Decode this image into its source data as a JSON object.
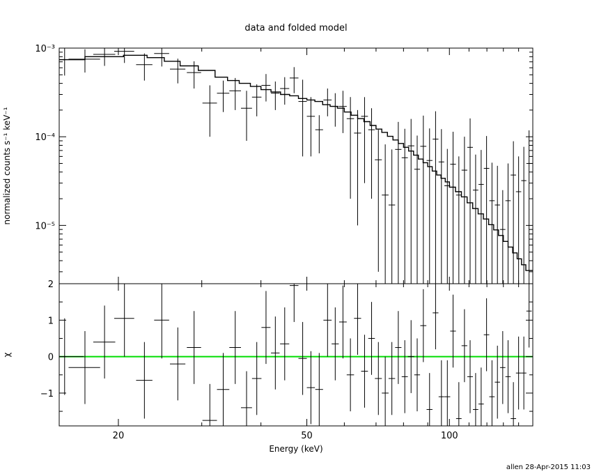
{
  "chart_data": [
    {
      "type": "scatter",
      "title": "data and folded model",
      "xlabel": "Energy (keV)",
      "ylabel": "normalized counts s⁻¹ keV⁻¹",
      "xscale": "log",
      "yscale": "log",
      "xlim": [
        15,
        150
      ],
      "ylim": [
        2.2e-06,
        0.001
      ],
      "x_ticks": [
        20,
        50,
        100
      ],
      "x_tick_labels": [
        "",
        "",
        ""
      ],
      "y_ticks": [
        0.001,
        0.0001,
        1e-05
      ],
      "y_tick_labels": [
        "10⁻³",
        "10⁻⁴",
        "10⁻⁵"
      ],
      "series": [
        {
          "role": "data",
          "x": [
            15.4,
            17.0,
            18.7,
            20.6,
            22.7,
            24.7,
            26.7,
            28.9,
            31.2,
            33.3,
            35.3,
            37.3,
            39.2,
            41.0,
            42.9,
            44.9,
            47.0,
            49.0,
            51.0,
            53.1,
            55.3,
            57.4,
            59.6,
            61.8,
            64.0,
            66.2,
            68.5,
            70.8,
            73.2,
            75.6,
            78.0,
            80.5,
            83.0,
            85.5,
            88.1,
            90.8,
            93.5,
            96.2,
            99.0,
            101.8,
            104.7,
            107.6,
            110.6,
            113.6,
            116.7,
            119.8,
            123.0,
            126.3,
            129.6,
            133.0,
            136.5,
            140.0,
            143.6,
            147.3
          ],
          "xerr": [
            1.5,
            1.3,
            1.0,
            1.0,
            0.9,
            0.9,
            1.0,
            1.0,
            1.1,
            1.0,
            1.0,
            1.0,
            0.9,
            0.9,
            0.9,
            1.0,
            1.0,
            1.0,
            1.0,
            1.0,
            1.1,
            1.0,
            1.1,
            1.1,
            1.1,
            1.1,
            1.1,
            1.2,
            1.2,
            1.2,
            1.2,
            1.2,
            1.3,
            1.2,
            1.3,
            1.3,
            1.3,
            1.3,
            1.4,
            1.4,
            1.4,
            1.5,
            1.5,
            1.5,
            1.5,
            1.6,
            1.6,
            1.6,
            1.7,
            1.7,
            1.8,
            1.8,
            1.8,
            1.9
          ],
          "y": [
            0.00074,
            0.00075,
            0.00085,
            0.00092,
            0.00065,
            0.00087,
            0.00058,
            0.00053,
            0.00024,
            0.00031,
            0.00033,
            0.00021,
            0.00028,
            0.00038,
            0.00031,
            0.00035,
            0.00046,
            0.00025,
            0.00017,
            0.00012,
            0.00026,
            0.00022,
            0.00022,
            0.00016,
            0.00011,
            0.00017,
            0.00012,
            5.5e-05,
            2.2e-05,
            1.7e-05,
            7.2e-05,
            5.8e-05,
            7.9e-05,
            4.3e-05,
            7.8e-05,
            5.4e-05,
            9.4e-05,
            5.2e-05,
            2.8e-05,
            4.9e-05,
            2.2e-05,
            4.2e-05,
            7.6e-05,
            2.5e-05,
            2.9e-05,
            4.4e-05,
            1.9e-05,
            1.7e-05,
            9e-06,
            1.9e-05,
            3.7e-05,
            2.4e-05,
            3.2e-05,
            5e-05
          ],
          "yerr_low": [
            0.00025,
            0.00022,
            0.00022,
            0.00024,
            0.00022,
            0.00025,
            0.00018,
            0.00018,
            0.00014,
            0.00012,
            0.00013,
            0.00012,
            0.00011,
            0.00013,
            0.00011,
            0.00012,
            0.00015,
            0.00019,
            0.00011,
            5.5e-05,
            9e-05,
            9e-05,
            0.00011,
            0.00014,
            0.0001,
            0.00014,
            0.0001,
            5.2e-05,
            2e-05,
            1.5e-05,
            7e-05,
            5.6e-05,
            7.7e-05,
            4.1e-05,
            7.6e-05,
            5.3e-05,
            9.2e-05,
            5.1e-05,
            2.7e-05,
            4.8e-05,
            2.1e-05,
            4.1e-05,
            7.5e-05,
            2.4e-05,
            2.8e-05,
            4.3e-05,
            1.8e-05,
            1.6e-05,
            8.5e-06,
            1.8e-05,
            3.6e-05,
            2.3e-05,
            3.1e-05,
            4.9e-05
          ],
          "yerr_high": [
            0.00025,
            0.00022,
            0.00022,
            0.00024,
            0.00022,
            0.00025,
            0.00018,
            0.00018,
            0.00014,
            0.00012,
            0.00013,
            0.00012,
            0.00011,
            0.00013,
            0.00011,
            0.00012,
            0.00015,
            0.00019,
            0.00011,
            5.5e-05,
            9e-05,
            9e-05,
            0.00011,
            0.00012,
            9e-05,
            0.00011,
            9e-05,
            6.5e-05,
            6e-05,
            5.5e-05,
            7.5e-05,
            6.5e-05,
            8e-05,
            6e-05,
            9.5e-05,
            7e-05,
            0.0001,
            7e-05,
            4.5e-05,
            6.5e-05,
            3.8e-05,
            5.8e-05,
            8.5e-05,
            3.8e-05,
            4.2e-05,
            5.8e-05,
            3.2e-05,
            3e-05,
            1.6e-05,
            3.1e-05,
            5.2e-05,
            3.6e-05,
            4.5e-05,
            6.8e-05
          ]
        },
        {
          "role": "model",
          "x": [
            14.0,
            17.0,
            20.5,
            23.0,
            25.0,
            27.0,
            29.5,
            32.0,
            34.0,
            36.0,
            38.0,
            40.0,
            42.0,
            44.0,
            46.0,
            48.0,
            50.0,
            52.0,
            54.0,
            56.0,
            58.0,
            60.0,
            62.0,
            64.0,
            66.0,
            68.0,
            70.0,
            72.0,
            74.0,
            76.0,
            78.0,
            80.0,
            82.0,
            84.0,
            86.0,
            88.0,
            90.0,
            92.0,
            94.0,
            96.0,
            98.0,
            100.0,
            103.0,
            106.0,
            109.0,
            112.0,
            115.0,
            118.0,
            121.0,
            124.0,
            127.0,
            130.0,
            133.0,
            136.0,
            139.0,
            142.0,
            145.0,
            150.0
          ],
          "y": [
            0.00074,
            0.0008,
            0.00083,
            0.00078,
            0.00071,
            0.00063,
            0.00056,
            0.00047,
            0.00043,
            0.0004,
            0.00037,
            0.00034,
            0.00032,
            0.0003,
            0.00029,
            0.00027,
            0.00026,
            0.00025,
            0.00023,
            0.00022,
            0.00021,
            0.00019,
            0.000175,
            0.00016,
            0.000148,
            0.000134,
            0.000122,
            0.000112,
            0.000101,
            9.2e-05,
            8.4e-05,
            7.6e-05,
            6.9e-05,
            6.2e-05,
            5.6e-05,
            5.1e-05,
            4.6e-05,
            4.1e-05,
            3.7e-05,
            3.4e-05,
            3.1e-05,
            2.7e-05,
            2.4e-05,
            2.1e-05,
            1.8e-05,
            1.55e-05,
            1.35e-05,
            1.18e-05,
            1.02e-05,
            8.9e-06,
            7.7e-06,
            6.6e-06,
            5.7e-06,
            4.9e-06,
            4.2e-06,
            3.6e-06,
            3.1e-06,
            2.5e-06
          ]
        }
      ]
    },
    {
      "type": "scatter",
      "title": "",
      "xlabel": "Energy (keV)",
      "ylabel": "χ",
      "xscale": "log",
      "xlim": [
        15,
        150
      ],
      "ylim": [
        -1.9,
        2.0
      ],
      "x_ticks": [
        20,
        50,
        100
      ],
      "x_tick_labels": [
        "20",
        "50",
        "100"
      ],
      "y_ticks": [
        2,
        1,
        0,
        -1
      ],
      "y_tick_labels": [
        "2",
        "1",
        "0",
        "−1"
      ],
      "reference_line": {
        "y": 0,
        "color": "#00dd00"
      },
      "series": [
        {
          "role": "residuals",
          "x": [
            15.4,
            17.0,
            18.7,
            20.6,
            22.7,
            24.7,
            26.7,
            28.9,
            31.2,
            33.3,
            35.3,
            37.3,
            39.2,
            41.0,
            42.9,
            44.9,
            47.0,
            49.0,
            51.0,
            53.1,
            55.3,
            57.4,
            59.6,
            61.8,
            64.0,
            66.2,
            68.5,
            70.8,
            73.2,
            75.6,
            78.0,
            80.5,
            83.0,
            85.5,
            88.1,
            90.8,
            93.5,
            96.2,
            99.0,
            101.8,
            104.7,
            107.6,
            110.6,
            113.6,
            116.7,
            119.8,
            123.0,
            126.3,
            129.6,
            133.0,
            136.5,
            140.0,
            143.6,
            147.3
          ],
          "xerr": [
            1.5,
            1.3,
            1.0,
            1.0,
            0.9,
            0.9,
            1.0,
            1.0,
            1.1,
            1.0,
            1.0,
            1.0,
            0.9,
            0.9,
            0.9,
            1.0,
            1.0,
            1.0,
            1.0,
            1.0,
            1.1,
            1.0,
            1.1,
            1.1,
            1.1,
            1.1,
            1.1,
            1.2,
            1.2,
            1.2,
            1.2,
            1.2,
            1.3,
            1.2,
            1.3,
            1.3,
            1.3,
            1.3,
            1.4,
            1.4,
            1.4,
            1.5,
            1.5,
            1.5,
            1.5,
            1.6,
            1.6,
            1.6,
            1.7,
            1.7,
            1.8,
            1.8,
            1.8,
            1.9
          ],
          "y": [
            0.0,
            -0.3,
            0.4,
            1.05,
            -0.65,
            1.0,
            -0.2,
            0.25,
            -1.75,
            -0.9,
            0.25,
            -1.4,
            -0.6,
            0.8,
            0.1,
            0.35,
            1.95,
            -0.05,
            -0.85,
            -0.9,
            1.0,
            0.35,
            0.95,
            -0.5,
            1.05,
            -0.4,
            0.5,
            -0.6,
            -1.0,
            -0.6,
            0.25,
            -0.55,
            0.0,
            -0.5,
            0.85,
            -1.45,
            1.2,
            -1.1,
            -1.1,
            0.7,
            -1.7,
            0.3,
            -0.55,
            -1.45,
            -1.3,
            0.6,
            -1.1,
            -0.7,
            -0.3,
            -0.55,
            -1.7,
            -0.45,
            -0.45,
            1.25
          ],
          "yerr": [
            1.05,
            1.0,
            1.0,
            1.05,
            1.05,
            1.05,
            1.0,
            1.0,
            1.0,
            1.0,
            1.0,
            1.0,
            1.0,
            1.0,
            1.0,
            1.0,
            1.0,
            1.0,
            1.0,
            1.0,
            1.0,
            1.0,
            1.0,
            1.0,
            1.0,
            1.0,
            1.0,
            1.0,
            1.0,
            1.0,
            1.0,
            1.0,
            1.0,
            1.0,
            1.0,
            1.0,
            1.0,
            1.0,
            1.0,
            1.0,
            1.0,
            1.0,
            1.0,
            1.0,
            1.0,
            1.0,
            1.0,
            1.0,
            1.0,
            1.0,
            1.0,
            1.0,
            1.0,
            1.0
          ]
        }
      ]
    }
  ],
  "footer": {
    "stamp": "allen 28-Apr-2015 11:03"
  }
}
